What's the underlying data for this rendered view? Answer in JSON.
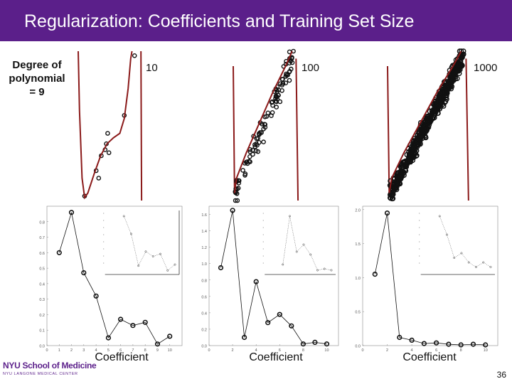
{
  "title": "Regularization: Coefficients and Training Set Size",
  "side_label": [
    "Degree of",
    "polynomial",
    "= 9"
  ],
  "page_number": "36",
  "logo": {
    "name": "NYU School of Medicine",
    "subtitle": "NYU LANGONE MEDICAL CENTER"
  },
  "colors": {
    "title_bar": "#5b1f8a",
    "fit_curve": "#8b1a1a",
    "points": "#111111"
  },
  "fits": [
    {
      "label": "10"
    },
    {
      "label": "100"
    },
    {
      "label": "1000"
    }
  ],
  "chart_data": [
    {
      "type": "line",
      "xlabel": "Coefficient",
      "x": [
        1,
        2,
        3,
        4,
        5,
        6,
        7,
        8,
        9,
        10
      ],
      "values": [
        0.6,
        0.86,
        0.47,
        0.32,
        0.05,
        0.17,
        0.13,
        0.15,
        0.01,
        0.06
      ],
      "xlim": [
        0,
        11
      ],
      "ylim": [
        0,
        0.9
      ],
      "xticks": [
        "0",
        "1",
        "2",
        "3",
        "4",
        "5",
        "6",
        "7",
        "8",
        "9",
        "10"
      ],
      "yticks": [
        "0.0",
        "0.1",
        "0.2",
        "0.3",
        "0.4",
        "0.5",
        "0.6",
        "0.7",
        "0.8"
      ]
    },
    {
      "type": "line",
      "xlabel": "Coefficient",
      "x": [
        1,
        2,
        3,
        4,
        5,
        6,
        7,
        8,
        9,
        10
      ],
      "values": [
        0.95,
        1.65,
        0.1,
        0.78,
        0.28,
        0.38,
        0.24,
        0.02,
        0.04,
        0.02
      ],
      "xlim": [
        0,
        11
      ],
      "ylim": [
        0,
        1.7
      ],
      "xticks": [
        "0",
        "2",
        "4",
        "6",
        "8",
        "10"
      ],
      "yticks": [
        "0.0",
        "0.2",
        "0.4",
        "0.6",
        "0.8",
        "1.0",
        "1.2",
        "1.4",
        "1.6"
      ]
    },
    {
      "type": "line",
      "xlabel": "Coefficient",
      "x": [
        1,
        2,
        3,
        4,
        5,
        6,
        7,
        8,
        9,
        10
      ],
      "values": [
        1.05,
        1.95,
        0.12,
        0.08,
        0.03,
        0.04,
        0.02,
        0.01,
        0.02,
        0.01
      ],
      "xlim": [
        0,
        11
      ],
      "ylim": [
        0,
        2.05
      ],
      "xticks": [
        "0",
        "2",
        "4",
        "6",
        "8",
        "10"
      ],
      "yticks": [
        "0.0",
        "0.5",
        "1.0",
        "1.5",
        "2.0"
      ]
    }
  ]
}
